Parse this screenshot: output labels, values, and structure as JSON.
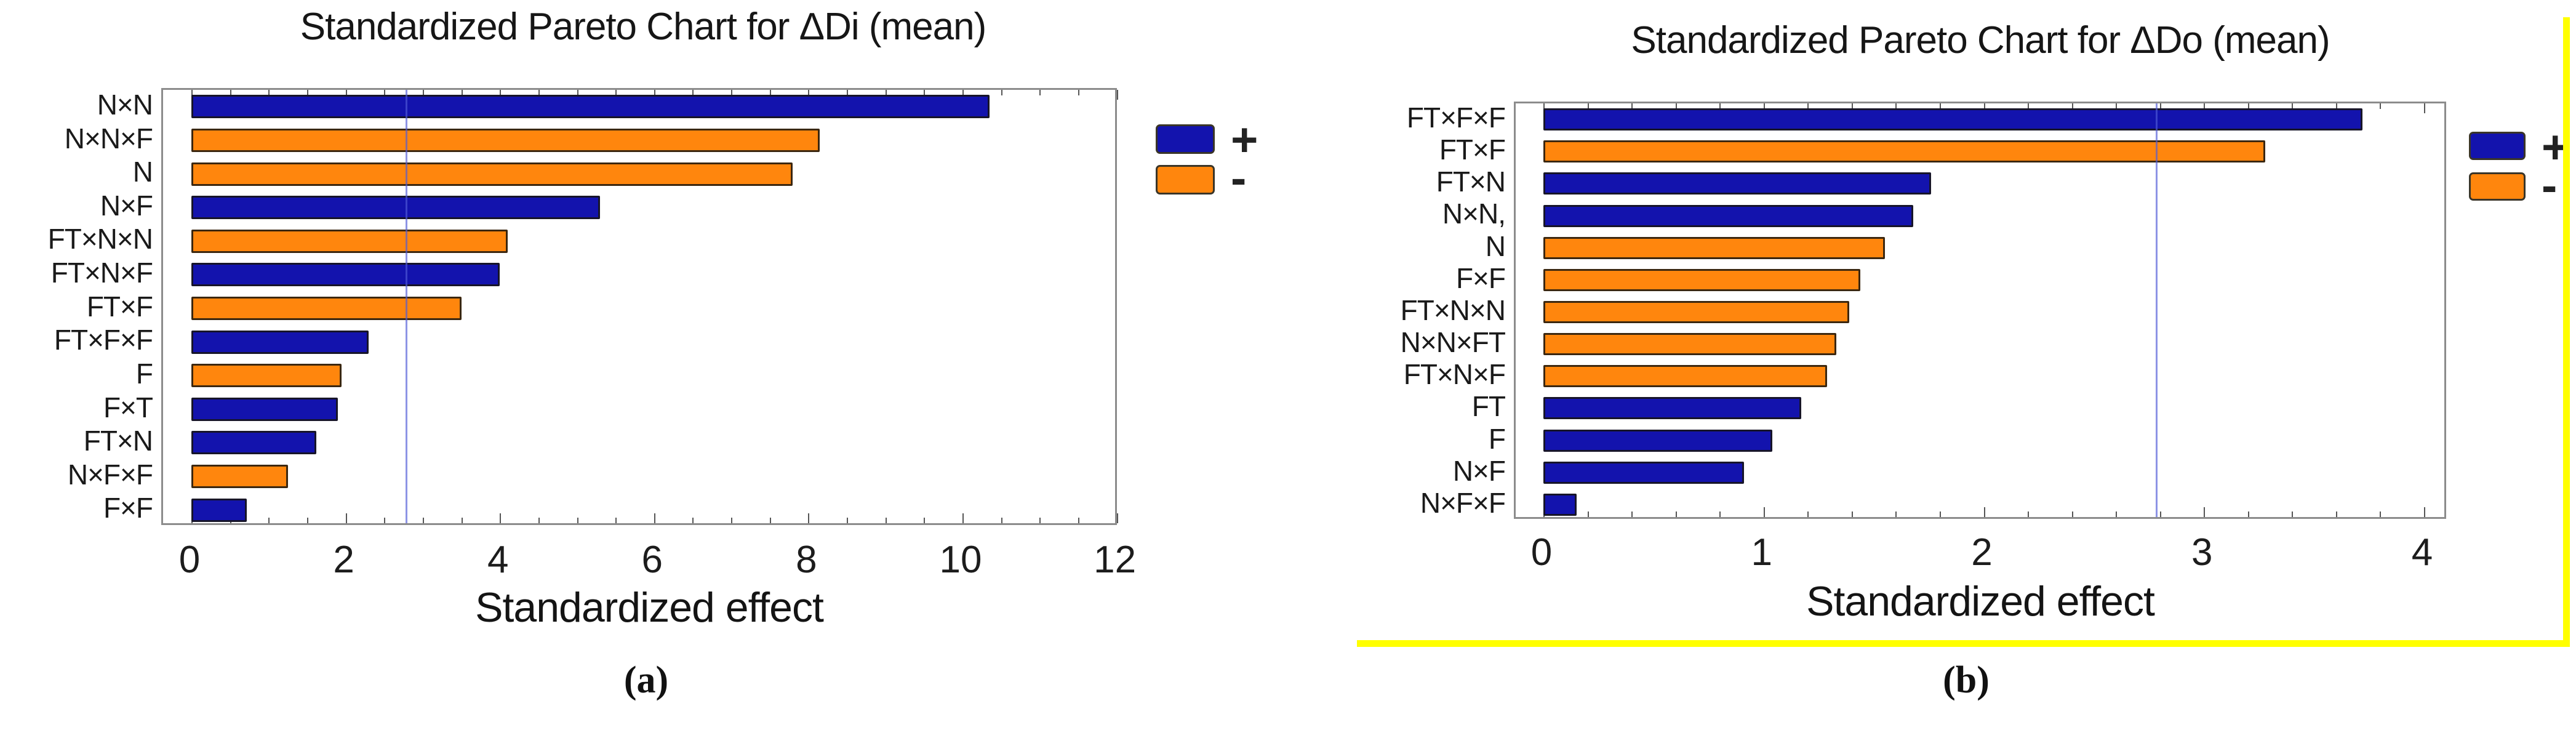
{
  "figure": {
    "caption_a": "(a)",
    "caption_b": "(b)"
  },
  "colors": {
    "positive": "#1313AD",
    "negative": "#FF860D",
    "reference_line": "rgba(80,90,215,0.65)",
    "highlight": "#FFFF00"
  },
  "chart_data": [
    {
      "type": "bar",
      "orientation": "horizontal",
      "title": "Standardized Pareto Chart for ΔDi (mean)",
      "xlabel": "Standardized effect",
      "categories": [
        "N×N",
        "N×N×F",
        "N",
        "N×F",
        "FT×N×N",
        "FT×N×F",
        "FT×F",
        "FT×F×F",
        "F",
        "F×T",
        "FT×N",
        "N×F×F",
        "F×F"
      ],
      "values": [
        10.35,
        8.15,
        7.8,
        5.3,
        4.1,
        4.0,
        3.5,
        2.3,
        1.95,
        1.9,
        1.62,
        1.25,
        0.72
      ],
      "signs": [
        "+",
        "-",
        "-",
        "+",
        "-",
        "+",
        "-",
        "+",
        "-",
        "+",
        "+",
        "-",
        "+"
      ],
      "xlim": [
        0,
        12
      ],
      "x_tick_labels": [
        "0",
        "2",
        "4",
        "6",
        "8",
        "10",
        "12"
      ],
      "x_major_ticks": [
        0,
        2,
        4,
        6,
        8,
        10,
        12
      ],
      "x_minor_step": 0.5,
      "reference_line": 2.78,
      "legend_positive": "+",
      "legend_negative": "-",
      "caption": "(a)",
      "grid": "off",
      "legend_position": "right-top"
    },
    {
      "type": "bar",
      "orientation": "horizontal",
      "title": "Standardized Pareto Chart for ΔDo (mean)",
      "xlabel": "Standardized effect",
      "categories": [
        "FT×F×F",
        "FT×F",
        "FT×N",
        "N×N,",
        "N",
        "F×F",
        "FT×N×N",
        "N×N×FT",
        "FT×N×F",
        "FT",
        "F",
        "N×F",
        "N×F×F"
      ],
      "values": [
        3.72,
        3.28,
        1.76,
        1.68,
        1.55,
        1.44,
        1.39,
        1.33,
        1.29,
        1.17,
        1.04,
        0.91,
        0.15
      ],
      "signs": [
        "+",
        "-",
        "+",
        "+",
        "-",
        "-",
        "-",
        "-",
        "-",
        "+",
        "+",
        "+",
        "+"
      ],
      "xlim": [
        0,
        4
      ],
      "x_tick_labels": [
        "0",
        "1",
        "2",
        "3",
        "4"
      ],
      "x_major_ticks": [
        0,
        1,
        2,
        3,
        4
      ],
      "x_minor_step": 0.2,
      "reference_line": 2.78,
      "legend_positive": "+",
      "legend_negative": "-",
      "caption": "(b)",
      "grid": "off",
      "legend_position": "right-top"
    }
  ]
}
